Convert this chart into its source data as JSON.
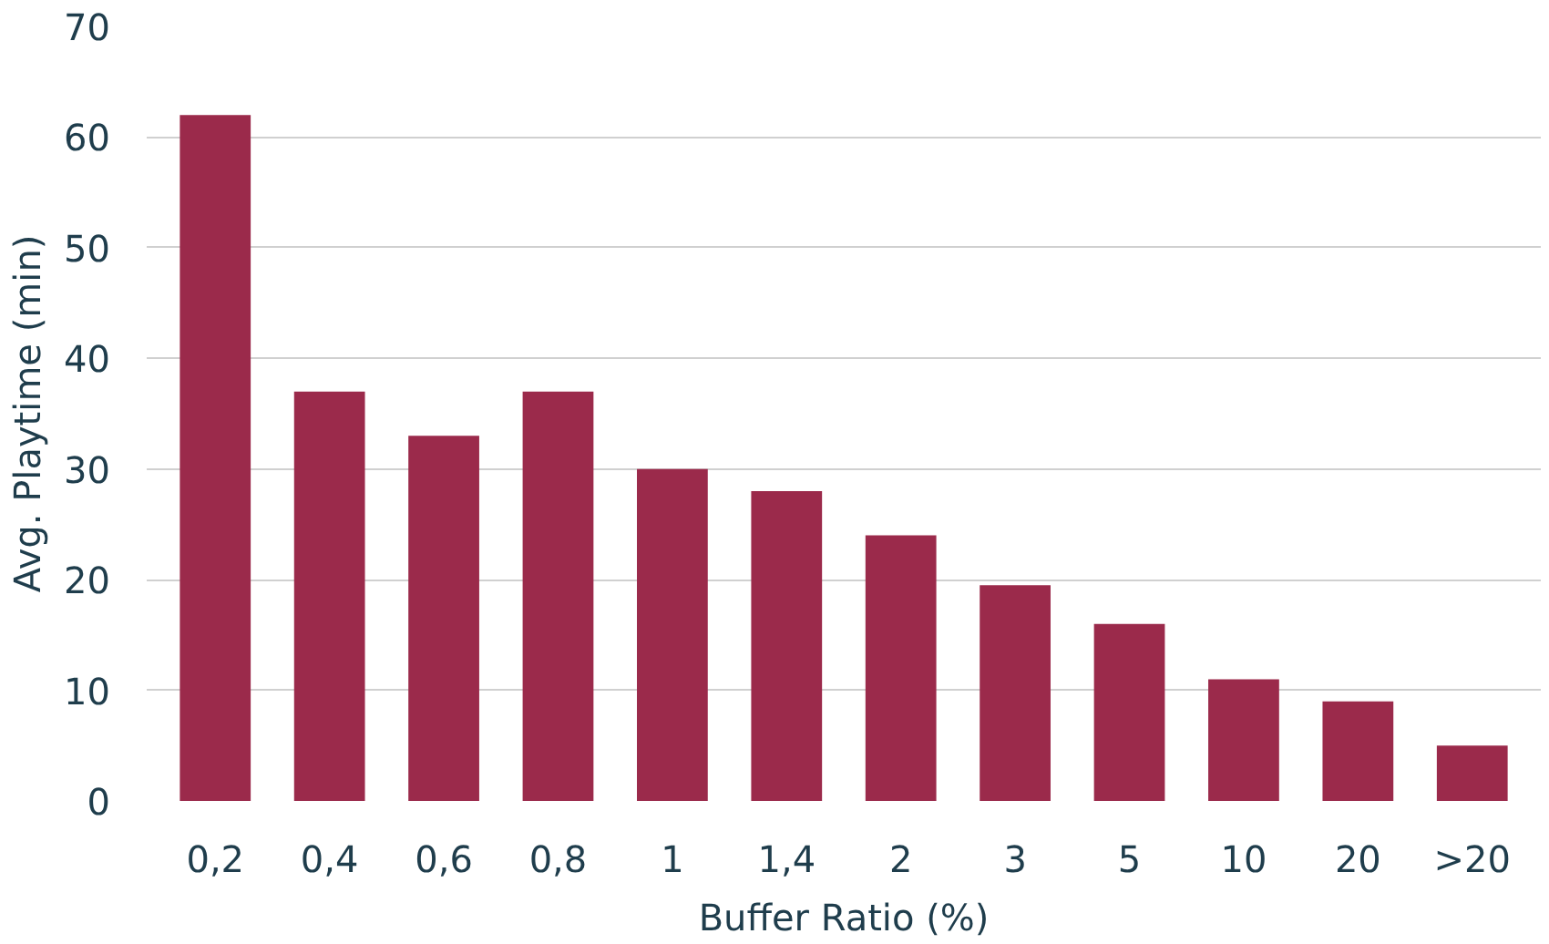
{
  "chart_data": {
    "type": "bar",
    "xlabel": "Buffer Ratio (%)",
    "ylabel": "Avg. Playtime (min)",
    "categories": [
      "0,2",
      "0,4",
      "0,6",
      "0,8",
      "1",
      "1,4",
      "2",
      "3",
      "5",
      "10",
      "20",
      ">20"
    ],
    "values": [
      62,
      37,
      33,
      37,
      30,
      28,
      24,
      19.5,
      16,
      11,
      9,
      5
    ],
    "color": "#9b2a4b",
    "ylim": [
      0,
      70
    ],
    "yticks": [
      0,
      10,
      20,
      30,
      40,
      50,
      60,
      70
    ],
    "grid": "y"
  }
}
